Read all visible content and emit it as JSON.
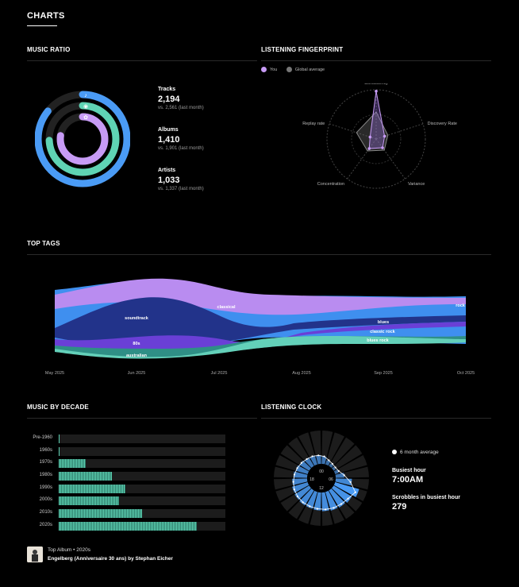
{
  "page": {
    "title": "CHARTS"
  },
  "sections": {
    "music_ratio": "MUSIC RATIO",
    "fingerprint": "LISTENING FINGERPRINT",
    "top_tags": "TOP TAGS",
    "decade": "MUSIC BY DECADE",
    "clock": "LISTENING CLOCK"
  },
  "colors": {
    "tracks": "#4a9bf5",
    "albums": "#5fd3b4",
    "artists": "#c79bf5",
    "you": "#c79bf5",
    "global": "#777777",
    "decade_bar": "#5fd3b4",
    "clock_bar": "#4a9bf5"
  },
  "stats": [
    {
      "label": "Tracks",
      "value": "2,194",
      "sub": "vs. 2,561 (last month)",
      "icon": "music-note-icon"
    },
    {
      "label": "Albums",
      "value": "1,410",
      "sub": "vs. 1,901 (last month)",
      "icon": "disc-icon"
    },
    {
      "label": "Artists",
      "value": "1,033",
      "sub": "vs. 1,337 (last month)",
      "icon": "star-icon"
    }
  ],
  "ring_ratios": {
    "tracks": 0.857,
    "albums": 0.742,
    "artists": 0.773
  },
  "fingerprint": {
    "legend": {
      "you": "You",
      "global": "Global average"
    },
    "axes": [
      "Consistency",
      "Discovery Rate",
      "Variance",
      "Concentration",
      "Replay rate"
    ],
    "you": [
      0.97,
      0.18,
      0.22,
      0.24,
      0.13
    ],
    "global": [
      0.55,
      0.25,
      0.28,
      0.3,
      0.42
    ]
  },
  "top_tags": {
    "x_labels": [
      "May 2025",
      "Jun 2025",
      "Jul 2025",
      "Aug 2025",
      "Sep 2025",
      "Oct 2025"
    ],
    "tags": [
      "classical",
      "rock",
      "soundtrack",
      "blues",
      "classic rock",
      "blues rock",
      "80s",
      "australian"
    ]
  },
  "decades": {
    "rows": [
      {
        "label": "Pre-1960",
        "value": 0.005
      },
      {
        "label": "1960s",
        "value": 0.005
      },
      {
        "label": "1970s",
        "value": 0.16
      },
      {
        "label": "1980s",
        "value": 0.32
      },
      {
        "label": "1990s",
        "value": 0.4
      },
      {
        "label": "2000s",
        "value": 0.36
      },
      {
        "label": "2010s",
        "value": 0.5
      },
      {
        "label": "2020s",
        "value": 0.83
      }
    ],
    "top_album": {
      "line1": "Top Album • 2020s",
      "line2": "Engelberg (Anniversaire 30 ans) by Stephan Eicher"
    }
  },
  "clock": {
    "hour_labels": [
      "00",
      "06",
      "12",
      "18"
    ],
    "legend": "6 month average",
    "busiest_label": "Busiest hour",
    "busiest_value": "7:00AM",
    "scrobbles_label": "Scrobbles in busiest hour",
    "scrobbles_value": "279",
    "hours": [
      0.3,
      0.18,
      0.12,
      0.1,
      0.15,
      0.35,
      0.65,
      1.0,
      0.85,
      0.8,
      0.78,
      0.75,
      0.72,
      0.7,
      0.7,
      0.68,
      0.65,
      0.6,
      0.55,
      0.5,
      0.45,
      0.4,
      0.38,
      0.35
    ]
  }
}
